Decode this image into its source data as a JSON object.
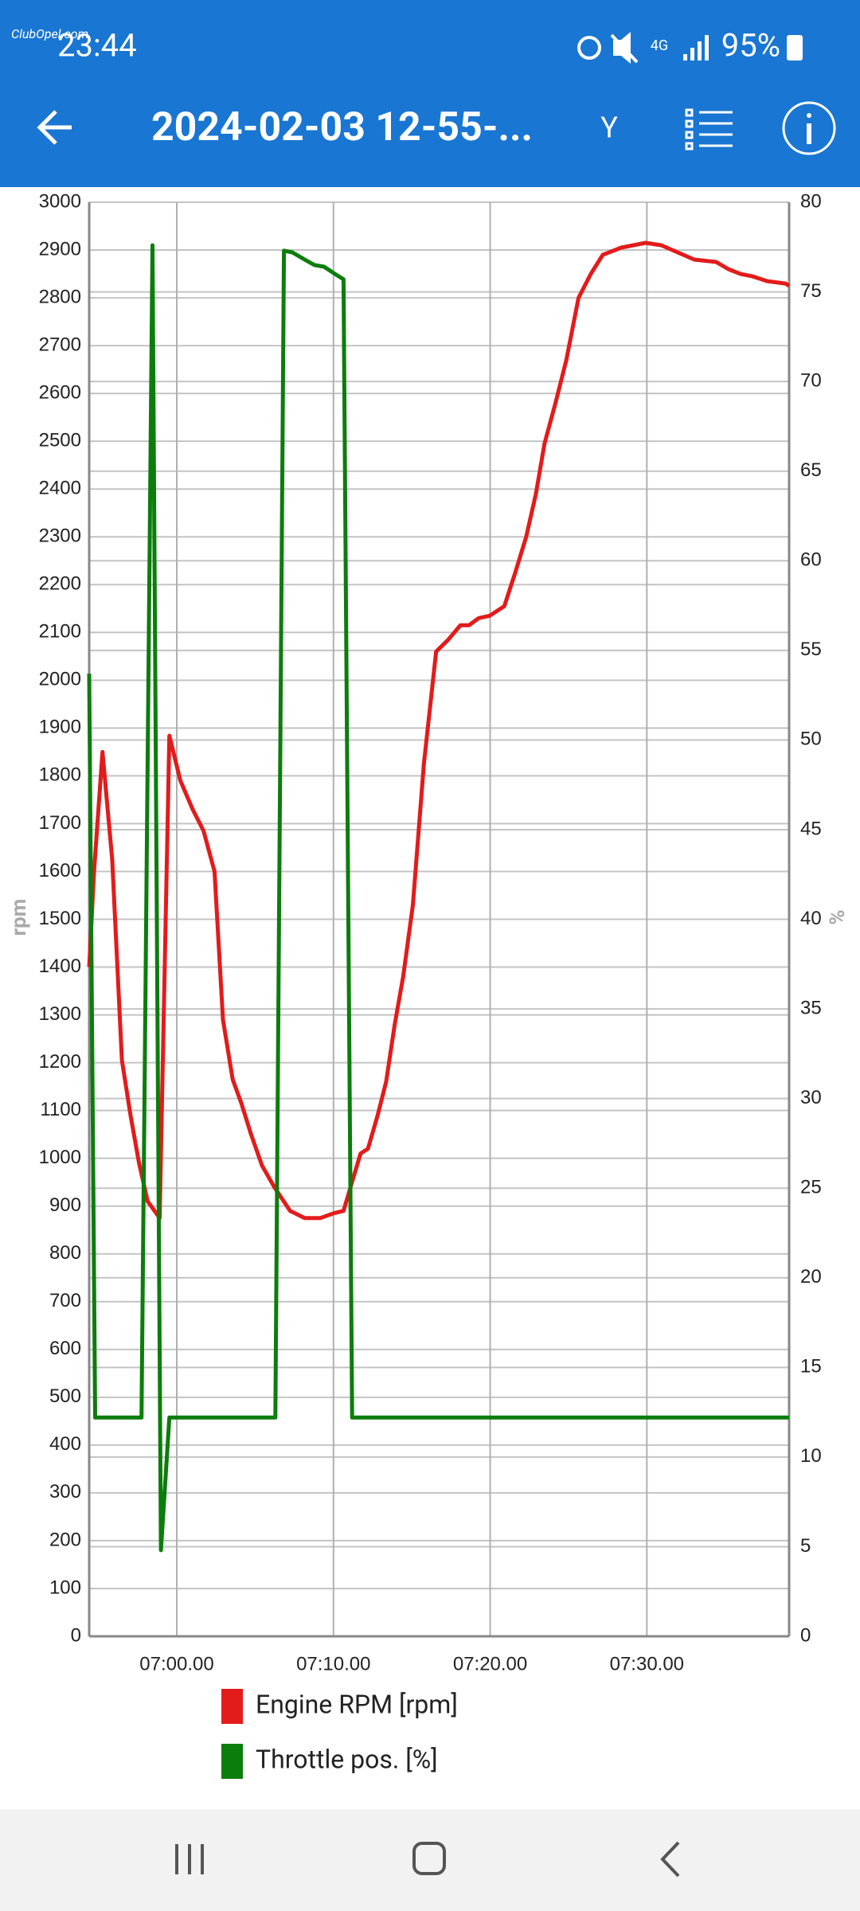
{
  "status_bar": {
    "time": "23:44",
    "network": "4G",
    "battery": "95%",
    "watermark": "ClubOpel.com"
  },
  "app_bar": {
    "title": "2024-02-03 12-55-...",
    "axis_button": "Y"
  },
  "chart_data": {
    "type": "line",
    "grid": true,
    "ylabel": "rpm",
    "y2label": "%",
    "xlim": [
      414.41,
      459.08
    ],
    "xticks": [
      {
        "value": 420,
        "label": "07:00.00"
      },
      {
        "value": 430,
        "label": "07:10.00"
      },
      {
        "value": 440,
        "label": "07:20.00"
      },
      {
        "value": 450,
        "label": "07:30.00"
      }
    ],
    "ylim": [
      0,
      3000
    ],
    "yticks": [
      0,
      100,
      200,
      300,
      400,
      500,
      600,
      700,
      800,
      900,
      1000,
      1100,
      1200,
      1300,
      1400,
      1500,
      1600,
      1700,
      1800,
      1900,
      2000,
      2100,
      2200,
      2300,
      2400,
      2500,
      2600,
      2700,
      2800,
      2900,
      3000
    ],
    "y2lim": [
      0,
      80
    ],
    "y2ticks": [
      0,
      5,
      10,
      15,
      20,
      25,
      30,
      35,
      40,
      45,
      50,
      55,
      60,
      65,
      70,
      75,
      80
    ],
    "series": [
      {
        "name": "Engine RPM [rpm]",
        "color": "#e31b1b",
        "axis": "y",
        "x": [
          414.41,
          414.72,
          415.26,
          415.88,
          416.5,
          417.05,
          417.59,
          418.14,
          418.91,
          419.53,
          420.23,
          421.01,
          421.71,
          422.41,
          422.95,
          423.57,
          424.12,
          424.74,
          425.44,
          426.22,
          427.23,
          428.16,
          429.17,
          430.02,
          430.64,
          431.73,
          432.2,
          432.82,
          433.36,
          433.91,
          434.45,
          435.07,
          435.77,
          436.55,
          437.33,
          438.1,
          438.65,
          439.27,
          439.97,
          440.9,
          441.6,
          442.3,
          442.92,
          443.47,
          444.17,
          444.86,
          445.64,
          446.42,
          447.19,
          448.36,
          449.91,
          450.92,
          451.62,
          452.32,
          453.02,
          454.42,
          455.2,
          455.98,
          456.75,
          457.69,
          458.85,
          459.08
        ],
        "values": [
          1400,
          1600,
          1850,
          1625,
          1205,
          1090,
          990,
          910,
          875,
          1884,
          1790,
          1730,
          1685,
          1600,
          1290,
          1165,
          1115,
          1050,
          985,
          940,
          890,
          875,
          875,
          885,
          890,
          1010,
          1020,
          1090,
          1160,
          1280,
          1380,
          1530,
          1825,
          2060,
          2085,
          2115,
          2115,
          2130,
          2135,
          2155,
          2225,
          2300,
          2390,
          2495,
          2580,
          2670,
          2800,
          2850,
          2890,
          2905,
          2915,
          2910,
          2900,
          2890,
          2880,
          2875,
          2860,
          2850,
          2845,
          2835,
          2830,
          2825
        ]
      },
      {
        "name": "Throttle pos. [%]",
        "color": "#0b7d0b",
        "axis": "y2",
        "x": [
          414.41,
          414.79,
          417.75,
          418.45,
          418.99,
          419.53,
          426.29,
          426.84,
          427.38,
          428.16,
          428.78,
          429.4,
          430.1,
          430.64,
          431.19,
          459.08
        ],
        "values": [
          53.7,
          12.2,
          12.2,
          77.6,
          4.8,
          12.2,
          12.2,
          77.3,
          77.2,
          76.8,
          76.5,
          76.4,
          76.0,
          75.7,
          12.2,
          12.2
        ]
      }
    ]
  }
}
